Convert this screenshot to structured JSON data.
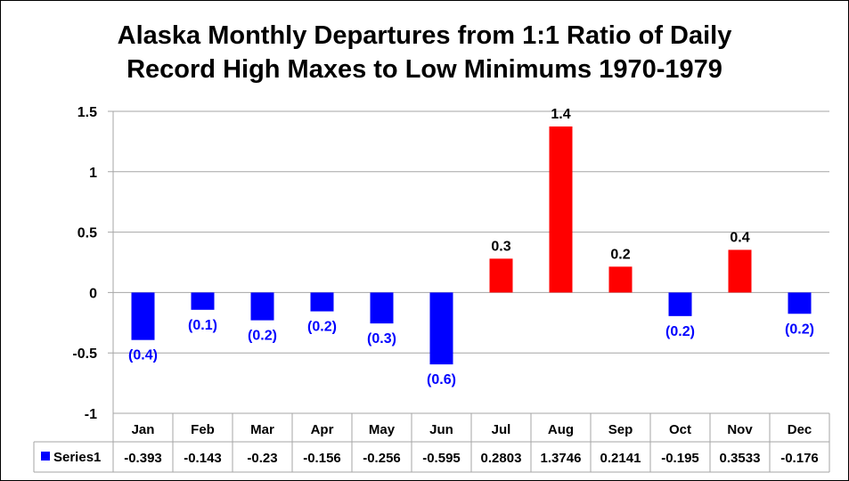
{
  "chart_data": {
    "type": "bar",
    "title": [
      "Alaska Monthly Departures from 1:1 Ratio of Daily",
      "Record High Maxes to Low Minimums 1970-1979"
    ],
    "categories": [
      "Jan",
      "Feb",
      "Mar",
      "Apr",
      "May",
      "Jun",
      "Jul",
      "Aug",
      "Sep",
      "Oct",
      "Nov",
      "Dec"
    ],
    "series": [
      {
        "name": "Series1",
        "values": [
          -0.393,
          -0.143,
          -0.23,
          -0.156,
          -0.256,
          -0.595,
          0.2803,
          1.3746,
          0.2141,
          -0.195,
          0.3533,
          -0.176
        ],
        "table_values": [
          "-0.393",
          "-0.143",
          "-0.23",
          "-0.156",
          "-0.256",
          "-0.595",
          "0.2803",
          "1.3746",
          "0.2141",
          "-0.195",
          "0.3533",
          "-0.176"
        ],
        "data_labels": [
          "(0.4)",
          "(0.1)",
          "(0.2)",
          "(0.2)",
          "(0.3)",
          "(0.6)",
          "0.3",
          "1.4",
          "0.2",
          "(0.2)",
          "0.4",
          "(0.2)"
        ]
      }
    ],
    "ylim": [
      -1,
      1.5
    ],
    "yticks": [
      "-1",
      "-0.5",
      "0",
      "0.5",
      "1",
      "1.5"
    ],
    "ytick_values": [
      -1,
      -0.5,
      0,
      0.5,
      1,
      1.5
    ],
    "grid": true,
    "data_table": true,
    "colors": {
      "positive": "#ff0000",
      "negative": "#0000ff",
      "negative_label": "#0000ff",
      "positive_label": "#000000",
      "legend_key": "#0000ff",
      "grid": "#a6a6a6"
    }
  }
}
